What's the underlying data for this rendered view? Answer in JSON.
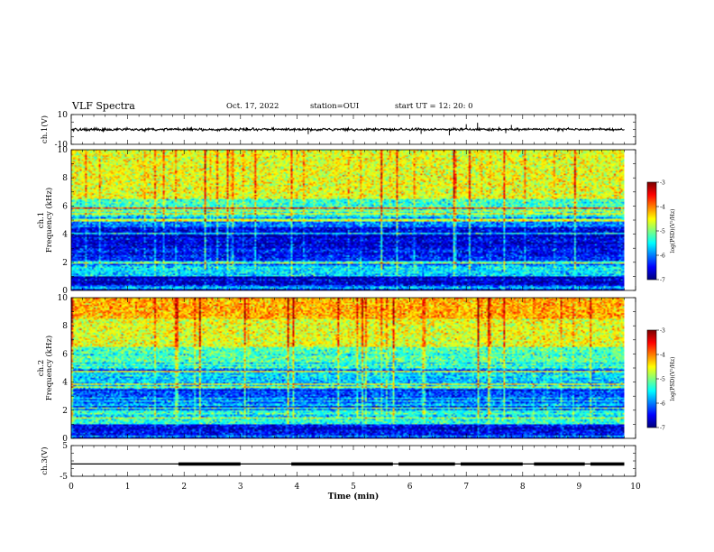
{
  "header": {
    "title": "VLF Spectra",
    "date": "Oct. 17, 2022",
    "station": "station=OUI",
    "start": "start  UT  =   12: 20: 0"
  },
  "chart_data": [
    {
      "type": "line",
      "panel": "ch1-waveform",
      "ylabel": "ch.1(V)",
      "ylim": [
        -10,
        10
      ],
      "yticks": [
        "10",
        "-10"
      ],
      "xlim": [
        0,
        10
      ],
      "description_values": {
        "baseline_V": 0,
        "typical_amplitude_V": 1.5
      },
      "spikes": [
        {
          "x": 4.2,
          "y": -3.2
        },
        {
          "x": 6.2,
          "y": -3.0
        },
        {
          "x": 6.7,
          "y": -4.0
        },
        {
          "x": 7.0,
          "y": 3.5
        },
        {
          "x": 7.2,
          "y": 4.5
        },
        {
          "x": 7.7,
          "y": -2.5
        },
        {
          "x": 7.8,
          "y": 3.0
        }
      ]
    },
    {
      "type": "heatmap",
      "panel": "ch1-spectrogram",
      "ylabel": "ch.1\nFrequency (kHz)",
      "xlim": [
        0,
        10
      ],
      "ylim": [
        0,
        10
      ],
      "yticks": [
        "0",
        "2",
        "4",
        "6",
        "8",
        "10"
      ],
      "data_xmax": 9.8,
      "colorbar": {
        "label": "log(PSD)(V²/Hz)",
        "range": [
          -7,
          -3
        ],
        "ticks": [
          "-3",
          "-4",
          "-5",
          "-6",
          "-7"
        ]
      },
      "bands": [
        {
          "f": [
            6.5,
            10
          ],
          "level": -4.6
        },
        {
          "f": [
            5.3,
            6.5
          ],
          "level": -5.3
        },
        {
          "f": [
            4.5,
            5.3
          ],
          "level": -6.0
        },
        {
          "f": [
            3.0,
            4.5
          ],
          "level": -6.6
        },
        {
          "f": [
            2.0,
            3.0
          ],
          "level": -6.4
        },
        {
          "f": [
            1.0,
            2.0
          ],
          "level": -5.6
        },
        {
          "f": [
            0,
            1.0
          ],
          "level": -6.8
        }
      ]
    },
    {
      "type": "heatmap",
      "panel": "ch2-spectrogram",
      "ylabel": "ch.2\nFrequency (kHz)",
      "xlim": [
        0,
        10
      ],
      "ylim": [
        0,
        10
      ],
      "yticks": [
        "0",
        "2",
        "4",
        "6",
        "8",
        "10"
      ],
      "data_xmax": 9.8,
      "colorbar": {
        "label": "log(PSD)(V²/Hz)",
        "range": [
          -7,
          -3
        ],
        "ticks": [
          "-3",
          "-4",
          "-5",
          "-6",
          "-7"
        ]
      },
      "bands": [
        {
          "f": [
            8.5,
            10
          ],
          "level": -4.2
        },
        {
          "f": [
            6.5,
            8.5
          ],
          "level": -4.6
        },
        {
          "f": [
            5.0,
            6.5
          ],
          "level": -5.2
        },
        {
          "f": [
            3.5,
            5.0
          ],
          "level": -5.7
        },
        {
          "f": [
            2.0,
            3.5
          ],
          "level": -6.2
        },
        {
          "f": [
            1.0,
            2.0
          ],
          "level": -5.4
        },
        {
          "f": [
            0,
            1.0
          ],
          "level": -6.5
        }
      ]
    },
    {
      "type": "line",
      "panel": "ch3-waveform",
      "ylabel": "ch.3(V)",
      "ylim": [
        -5,
        5
      ],
      "yticks": [
        "5",
        "-5"
      ],
      "xlim": [
        0,
        10
      ],
      "xlabel": "Time  (min)",
      "xticks": [
        "0",
        "1",
        "2",
        "3",
        "4",
        "5",
        "6",
        "7",
        "8",
        "9",
        "10"
      ],
      "level_V": -1,
      "thick_segments": [
        [
          1.9,
          3.0
        ],
        [
          3.9,
          5.7
        ],
        [
          5.8,
          6.8
        ],
        [
          6.9,
          8.0
        ],
        [
          8.2,
          9.1
        ],
        [
          9.2,
          9.8
        ]
      ]
    }
  ]
}
